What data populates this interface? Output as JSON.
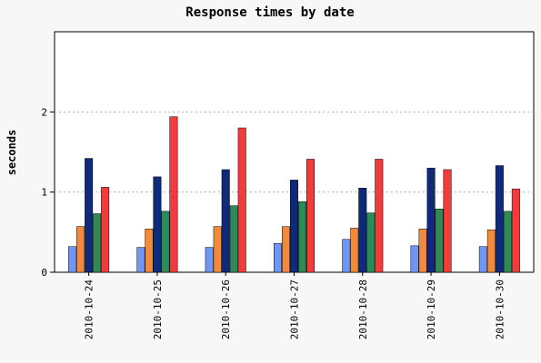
{
  "chart_data": {
    "type": "bar",
    "title": "Response times by date",
    "xlabel": "",
    "ylabel": "seconds",
    "ylim": [
      0,
      3
    ],
    "yticks": [
      0,
      1,
      2
    ],
    "grid": true,
    "categories": [
      "2010-10-24",
      "2010-10-25",
      "2010-10-26",
      "2010-10-27",
      "2010-10-28",
      "2010-10-29",
      "2010-10-30"
    ],
    "series": [
      {
        "color": "#6f96f2",
        "values": [
          0.32,
          0.31,
          0.31,
          0.36,
          0.41,
          0.33,
          0.32
        ]
      },
      {
        "color": "#f28a3c",
        "values": [
          0.57,
          0.54,
          0.57,
          0.57,
          0.55,
          0.54,
          0.53
        ]
      },
      {
        "color": "#0f2a7a",
        "values": [
          1.42,
          1.19,
          1.28,
          1.15,
          1.05,
          1.3,
          1.33
        ]
      },
      {
        "color": "#2e8b57",
        "values": [
          0.73,
          0.76,
          0.83,
          0.88,
          0.74,
          0.79,
          0.76
        ]
      },
      {
        "color": "#f23c3c",
        "values": [
          1.06,
          1.94,
          1.8,
          1.41,
          1.41,
          1.28,
          1.04
        ]
      }
    ]
  }
}
